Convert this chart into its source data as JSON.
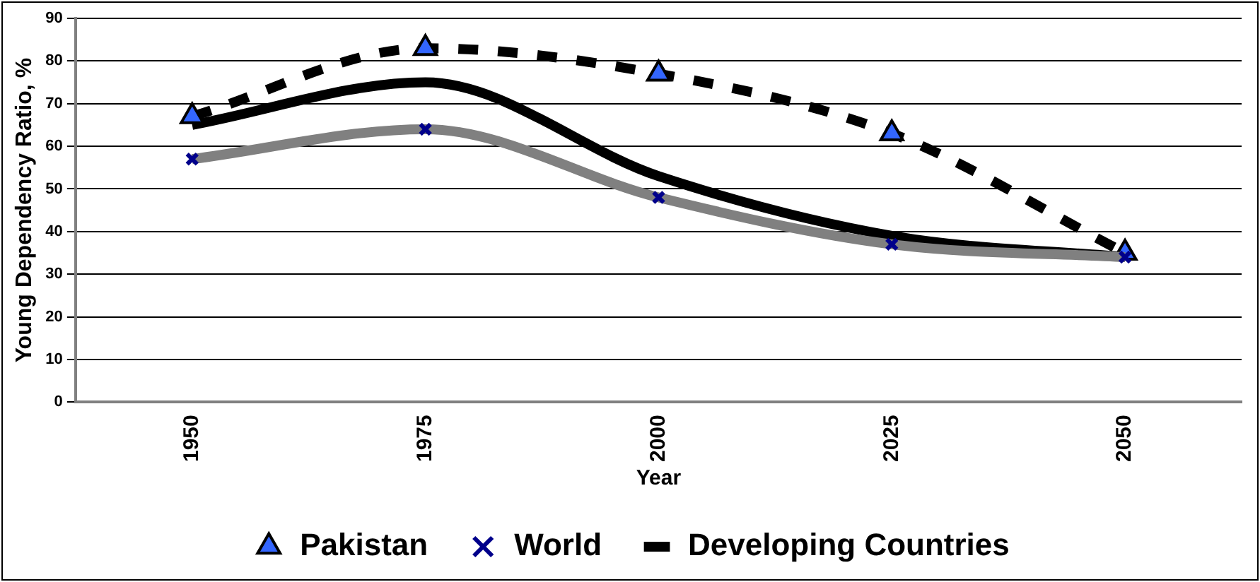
{
  "chart_data": {
    "type": "line",
    "xlabel": "Year",
    "ylabel": "Young Dependency Ratio, %",
    "categories": [
      "1950",
      "1975",
      "2000",
      "2025",
      "2050"
    ],
    "series": [
      {
        "name": "Pakistan",
        "color": "#000000",
        "values": [
          67,
          83,
          77,
          63,
          35
        ],
        "marker": "triangle",
        "line_style": "dashed"
      },
      {
        "name": "World",
        "color": "#808080",
        "values": [
          57,
          64,
          48,
          37,
          34
        ],
        "marker": "cross",
        "line_style": "solid"
      },
      {
        "name": "Developing Countries",
        "color": "#000000",
        "values": [
          65,
          75,
          53,
          39,
          34
        ],
        "marker": "none",
        "line_style": "solid"
      }
    ],
    "ylim": [
      0,
      90
    ],
    "yticks": [
      0,
      10,
      20,
      30,
      40,
      50,
      60,
      70,
      80,
      90
    ],
    "grid": "y",
    "legend": "bottom"
  }
}
